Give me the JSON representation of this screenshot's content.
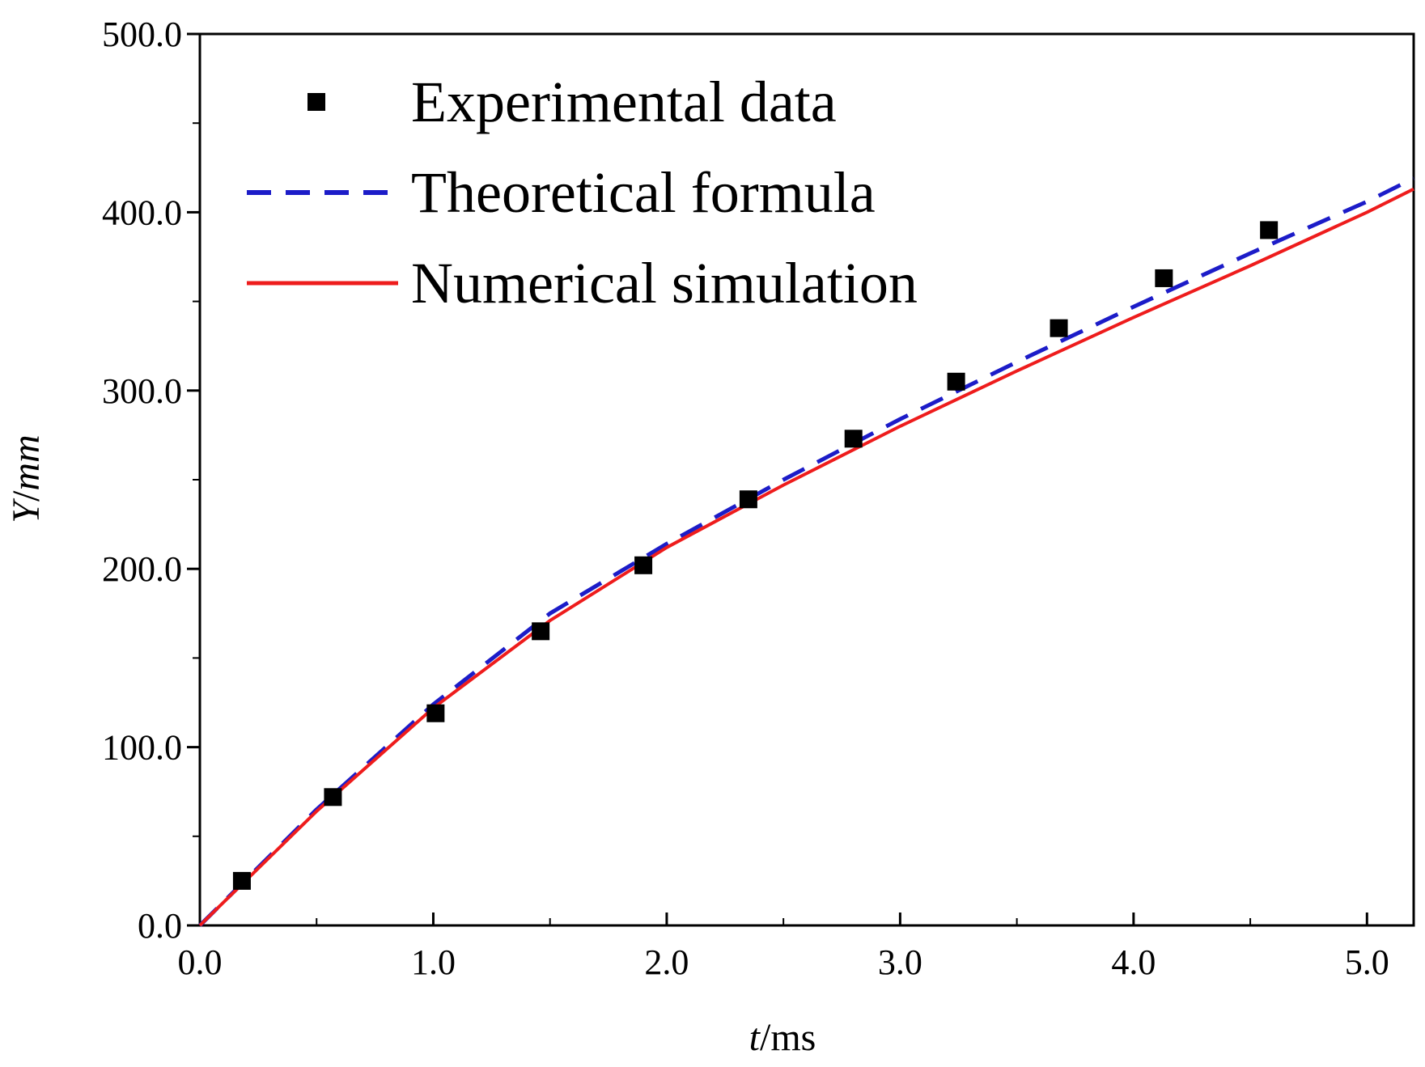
{
  "chart_data": {
    "type": "line",
    "title": "",
    "xlabel": {
      "var": "t",
      "unit": "/ms"
    },
    "ylabel": {
      "var": "Y",
      "slash": "/",
      "unit": "mm"
    },
    "xlim": [
      0,
      5.2
    ],
    "ylim": [
      0,
      500
    ],
    "x_ticks": [
      0,
      1,
      2,
      3,
      4,
      5
    ],
    "x_tick_labels": [
      "0.0",
      "1.0",
      "2.0",
      "3.0",
      "4.0",
      "5.0"
    ],
    "y_ticks": [
      0,
      100,
      200,
      300,
      400,
      500
    ],
    "y_tick_labels": [
      "0.0",
      "100.0",
      "200.0",
      "300.0",
      "400.0",
      "500.0"
    ],
    "grid": false,
    "legend_position": "top-left",
    "series": [
      {
        "name": "Experimental data",
        "kind": "scatter",
        "color": "#000000",
        "x": [
          0.18,
          0.57,
          1.01,
          1.46,
          1.9,
          2.35,
          2.8,
          3.24,
          3.68,
          4.13,
          4.58
        ],
        "y": [
          25,
          72,
          119,
          165,
          202,
          239,
          273,
          305,
          335,
          363,
          390
        ]
      },
      {
        "name": "Theoretical formula",
        "kind": "dashed-line",
        "color": "#1c1cc8",
        "x": [
          0,
          0.5,
          1.0,
          1.5,
          2.0,
          2.5,
          3.0,
          3.5,
          4.0,
          4.5,
          5.0,
          5.2
        ],
        "y": [
          0,
          65,
          124,
          175,
          214,
          250,
          284,
          316,
          347,
          377,
          406,
          419
        ]
      },
      {
        "name": "Numerical simulation",
        "kind": "solid-line",
        "color": "#ee1c1c",
        "x": [
          0,
          0.5,
          1.0,
          1.5,
          2.0,
          2.5,
          3.0,
          3.5,
          4.0,
          4.5,
          5.0,
          5.2
        ],
        "y": [
          0,
          64,
          122,
          171,
          212,
          247,
          280,
          311,
          341,
          370,
          400,
          413
        ]
      }
    ]
  }
}
